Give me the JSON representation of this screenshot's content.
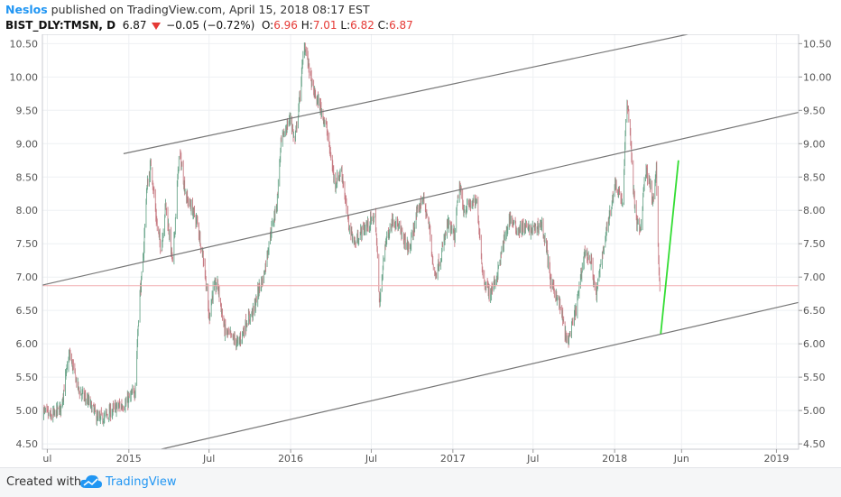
{
  "header": {
    "author": "Neslos",
    "published_text": " published on TradingView.com, April 15, 2018 08:17 EST",
    "symbol": "BIST_DLY:TMSN, D",
    "last": "6.87",
    "change": "−0.05 (−0.72%)",
    "o_label": "O:",
    "o_value": "6.96",
    "h_label": "H:",
    "h_value": "7.01",
    "l_label": "L:",
    "l_value": "6.82",
    "c_label": "C:",
    "c_value": "6.87"
  },
  "footer": {
    "created_with": "Created with",
    "brand": "TradingView"
  },
  "colors": {
    "up": "#6aa58a",
    "down": "#c77b83",
    "trendline": "#777777",
    "projection": "#33dd33",
    "price_line": "#f2aeb0",
    "grid": "#eef0f3",
    "axis_text": "#555555",
    "brand": "#2196f3"
  },
  "chart_data": {
    "type": "candlestick",
    "title": "BIST_DLY:TMSN, D",
    "x_range": [
      "2014-06-20",
      "2019-02-20"
    ],
    "ylim": [
      4.42,
      10.64
    ],
    "grid": true,
    "price_axis_sides": [
      "left",
      "right"
    ],
    "y_ticks": [
      "4.50",
      "5.00",
      "5.50",
      "6.00",
      "6.50",
      "7.00",
      "7.50",
      "8.00",
      "8.50",
      "9.00",
      "9.50",
      "10.00",
      "10.50"
    ],
    "x_ticks": [
      {
        "date": "2014-07-01",
        "label": "ul"
      },
      {
        "date": "2015-01-01",
        "label": "2015"
      },
      {
        "date": "2015-07-01",
        "label": "Jul"
      },
      {
        "date": "2016-01-01",
        "label": "2016"
      },
      {
        "date": "2016-07-01",
        "label": "Jul"
      },
      {
        "date": "2017-01-01",
        "label": "2017"
      },
      {
        "date": "2017-07-01",
        "label": "Jul"
      },
      {
        "date": "2018-01-01",
        "label": "2018"
      },
      {
        "date": "2018-06-01",
        "label": "Jun"
      },
      {
        "date": "2019-01-01",
        "label": "2019"
      }
    ],
    "last_price": 6.87,
    "price_path": [
      [
        "2014-06-20",
        5.0
      ],
      [
        "2014-07-10",
        4.9
      ],
      [
        "2014-08-01",
        5.05
      ],
      [
        "2014-08-20",
        5.85
      ],
      [
        "2014-09-10",
        5.3
      ],
      [
        "2014-10-05",
        5.1
      ],
      [
        "2014-10-25",
        4.85
      ],
      [
        "2014-11-15",
        4.95
      ],
      [
        "2014-12-05",
        5.05
      ],
      [
        "2014-12-25",
        5.1
      ],
      [
        "2015-01-15",
        5.3
      ],
      [
        "2015-01-25",
        6.7
      ],
      [
        "2015-02-01",
        7.1
      ],
      [
        "2015-02-10",
        8.3
      ],
      [
        "2015-02-20",
        8.7
      ],
      [
        "2015-03-05",
        7.8
      ],
      [
        "2015-03-15",
        7.4
      ],
      [
        "2015-03-25",
        8.1
      ],
      [
        "2015-04-10",
        7.2
      ],
      [
        "2015-04-25",
        8.9
      ],
      [
        "2015-05-10",
        8.2
      ],
      [
        "2015-05-25",
        8.0
      ],
      [
        "2015-06-05",
        7.8
      ],
      [
        "2015-06-20",
        7.2
      ],
      [
        "2015-07-01",
        6.4
      ],
      [
        "2015-07-10",
        6.8
      ],
      [
        "2015-07-20",
        6.9
      ],
      [
        "2015-08-05",
        6.2
      ],
      [
        "2015-08-20",
        6.1
      ],
      [
        "2015-09-05",
        6.0
      ],
      [
        "2015-09-25",
        6.35
      ],
      [
        "2015-10-10",
        6.5
      ],
      [
        "2015-10-20",
        6.8
      ],
      [
        "2015-11-01",
        7.0
      ],
      [
        "2015-11-15",
        7.6
      ],
      [
        "2015-12-01",
        8.1
      ],
      [
        "2015-12-10",
        9.0
      ],
      [
        "2015-12-20",
        9.2
      ],
      [
        "2016-01-01",
        9.4
      ],
      [
        "2016-01-10",
        9.0
      ],
      [
        "2016-01-20",
        9.6
      ],
      [
        "2016-02-01",
        10.5
      ],
      [
        "2016-02-10",
        10.2
      ],
      [
        "2016-02-20",
        9.8
      ],
      [
        "2016-03-05",
        9.6
      ],
      [
        "2016-03-20",
        9.3
      ],
      [
        "2016-04-10",
        8.4
      ],
      [
        "2016-04-25",
        8.6
      ],
      [
        "2016-05-10",
        7.8
      ],
      [
        "2016-05-25",
        7.5
      ],
      [
        "2016-06-10",
        7.7
      ],
      [
        "2016-06-25",
        7.8
      ],
      [
        "2016-07-10",
        7.9
      ],
      [
        "2016-07-20",
        6.6
      ],
      [
        "2016-08-01",
        7.5
      ],
      [
        "2016-08-20",
        7.9
      ],
      [
        "2016-09-10",
        7.6
      ],
      [
        "2016-09-25",
        7.4
      ],
      [
        "2016-10-10",
        7.9
      ],
      [
        "2016-10-25",
        8.2
      ],
      [
        "2016-11-10",
        7.7
      ],
      [
        "2016-11-20",
        7.0
      ],
      [
        "2016-12-05",
        7.3
      ],
      [
        "2016-12-20",
        7.8
      ],
      [
        "2017-01-05",
        7.6
      ],
      [
        "2017-01-15",
        8.4
      ],
      [
        "2017-01-25",
        8.0
      ],
      [
        "2017-02-10",
        8.1
      ],
      [
        "2017-02-25",
        8.1
      ],
      [
        "2017-03-10",
        7.0
      ],
      [
        "2017-03-25",
        6.75
      ],
      [
        "2017-04-10",
        7.0
      ],
      [
        "2017-04-25",
        7.5
      ],
      [
        "2017-05-10",
        7.9
      ],
      [
        "2017-05-25",
        7.7
      ],
      [
        "2017-06-10",
        7.75
      ],
      [
        "2017-06-25",
        7.7
      ],
      [
        "2017-07-10",
        7.75
      ],
      [
        "2017-07-20",
        7.8
      ],
      [
        "2017-08-01",
        7.4
      ],
      [
        "2017-08-10",
        6.9
      ],
      [
        "2017-08-25",
        6.7
      ],
      [
        "2017-09-05",
        6.4
      ],
      [
        "2017-09-15",
        6.0
      ],
      [
        "2017-09-25",
        6.2
      ],
      [
        "2017-10-05",
        6.5
      ],
      [
        "2017-10-15",
        6.9
      ],
      [
        "2017-10-25",
        7.4
      ],
      [
        "2017-11-10",
        7.2
      ],
      [
        "2017-11-20",
        6.7
      ],
      [
        "2017-12-05",
        7.4
      ],
      [
        "2017-12-20",
        7.9
      ],
      [
        "2018-01-01",
        8.4
      ],
      [
        "2018-01-10",
        8.3
      ],
      [
        "2018-01-20",
        8.1
      ],
      [
        "2018-01-28",
        9.7
      ],
      [
        "2018-02-05",
        9.2
      ],
      [
        "2018-02-12",
        8.3
      ],
      [
        "2018-02-20",
        7.8
      ],
      [
        "2018-03-01",
        7.7
      ],
      [
        "2018-03-10",
        8.6
      ],
      [
        "2018-03-20",
        8.5
      ],
      [
        "2018-03-28",
        8.1
      ],
      [
        "2018-04-05",
        8.6
      ],
      [
        "2018-04-09",
        7.4
      ],
      [
        "2018-04-13",
        6.87
      ]
    ],
    "trendlines": [
      {
        "role": "upper-channel",
        "points": [
          [
            "2014-12-20",
            8.85
          ],
          [
            "2018-06-15",
            10.64
          ]
        ]
      },
      {
        "role": "middle-channel",
        "points": [
          [
            "2014-06-20",
            6.88
          ],
          [
            "2019-02-20",
            9.47
          ]
        ]
      },
      {
        "role": "lower-channel",
        "points": [
          [
            "2015-03-15",
            4.42
          ],
          [
            "2019-02-20",
            6.62
          ]
        ]
      }
    ],
    "projection": {
      "points": [
        [
          "2018-04-15",
          6.15
        ],
        [
          "2018-05-25",
          8.75
        ]
      ]
    }
  }
}
